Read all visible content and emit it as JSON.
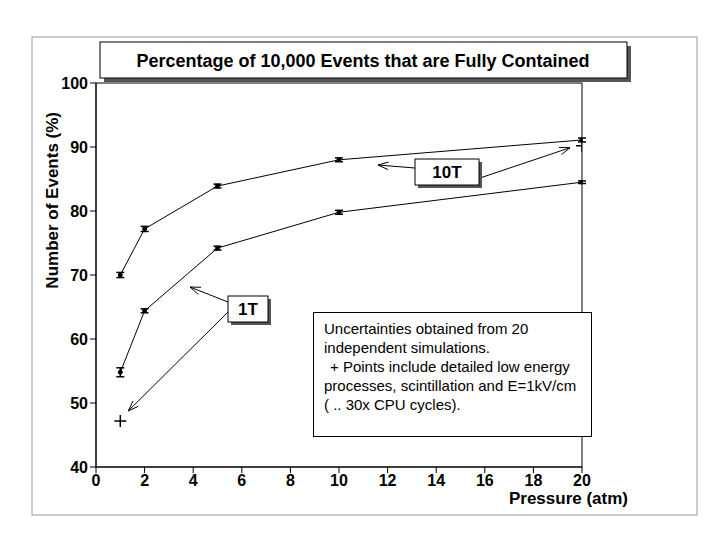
{
  "chart_data": {
    "type": "line",
    "title": "Percentage of 10,000 Events that are Fully Contained",
    "x_label": "Pressure (atm)",
    "y_label": "Number of Events (%)",
    "x": [
      1,
      2,
      5,
      10,
      20
    ],
    "series": [
      {
        "name": "10T",
        "color": "#000000",
        "marker": "circle",
        "values": [
          70.0,
          77.2,
          83.9,
          88.0,
          91.1
        ],
        "errors": [
          0.4,
          0.4,
          0.3,
          0.3,
          0.3
        ],
        "detailed_points": {
          "x": [
            20
          ],
          "values": [
            90.2
          ],
          "marker": "plus"
        }
      },
      {
        "name": "1T",
        "color": "#000000",
        "marker": "circle",
        "values": [
          54.8,
          64.4,
          74.2,
          79.8,
          84.5
        ],
        "errors": [
          0.7,
          0.3,
          0.3,
          0.3,
          0.2
        ],
        "detailed_points": {
          "x": [
            1
          ],
          "values": [
            47.2
          ],
          "marker": "plus"
        }
      }
    ],
    "xlim": [
      0,
      20
    ],
    "xticks": [
      0,
      2,
      4,
      6,
      8,
      10,
      12,
      14,
      16,
      18,
      20
    ],
    "ylim": [
      40,
      100
    ],
    "yticks": [
      40,
      50,
      60,
      70,
      80,
      90,
      100
    ],
    "grid": false,
    "note": [
      "Uncertainties obtained from 20 independent simulations.",
      "+ Points include detailed low energy processes, scintillation and E=1kV/cm ( .. 30x CPU cycles)."
    ]
  }
}
